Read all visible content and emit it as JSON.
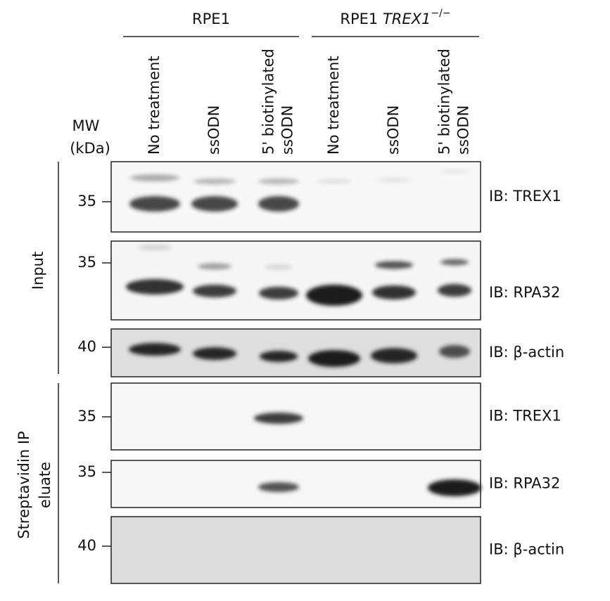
{
  "groups": [
    {
      "label": "RPE1"
    },
    {
      "label": "RPE1",
      "italic": "TREX1",
      "superscript": "−/−"
    }
  ],
  "lanes": [
    [
      "No treatment"
    ],
    [
      "ssODN"
    ],
    [
      "5' biotinylated",
      "ssODN"
    ],
    [
      "No treatment"
    ],
    [
      "ssODN"
    ],
    [
      "5' biotinylated",
      "ssODN"
    ]
  ],
  "mw_header": [
    "MW",
    "(kDa)"
  ],
  "sections": [
    {
      "label": [
        "Input"
      ],
      "panels": [
        {
          "marker": "35",
          "blot": "IB: TREX1"
        },
        {
          "marker": "35",
          "blot": "IB: RPA32"
        },
        {
          "marker": "40",
          "blot": "IB: β-actin"
        }
      ]
    },
    {
      "label": [
        "Streptavidin IP",
        "eluate"
      ],
      "panels": [
        {
          "marker": "35",
          "blot": "IB: TREX1"
        },
        {
          "marker": "35",
          "blot": "IB: RPA32"
        },
        {
          "marker": "40",
          "blot": "IB: β-actin"
        }
      ]
    }
  ]
}
